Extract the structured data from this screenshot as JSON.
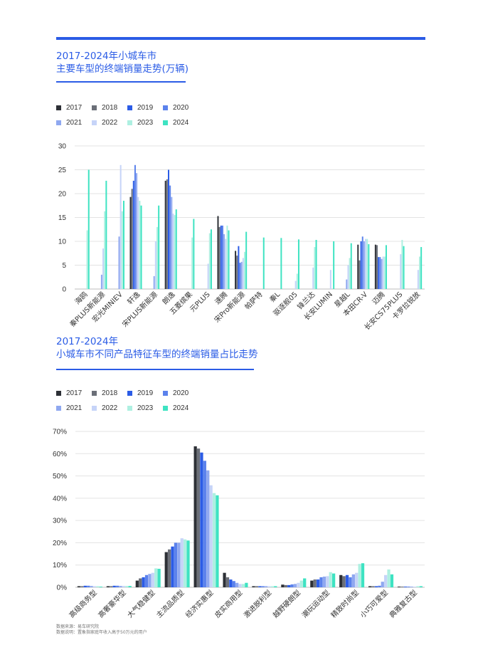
{
  "colors": {
    "accent": "#2b5ce6",
    "series": [
      "#2d3036",
      "#6b6f78",
      "#2b5ce6",
      "#5b82ec",
      "#8fa8f0",
      "#c6d4f8",
      "#aef0e1",
      "#3ee3c2"
    ]
  },
  "chart1": {
    "title_line1": "2017-2024年小城车市",
    "title_line2": "主要车型的终端销量走势(万辆)"
  },
  "chart2": {
    "title_line1": "2017-2024年",
    "title_line2": "小城车市不同产品特征车型的终端销量占比走势"
  },
  "footnote": {
    "source": "数据来源：易车研究院",
    "note": "数据说明：置象指家庭年收入高于50万元的用户"
  },
  "chart_data": [
    {
      "type": "bar",
      "title": "主要车型的终端销量走势(万辆)",
      "categories": [
        "海鸥",
        "秦PLUS新能源",
        "宏光MINIEV",
        "轩逸",
        "宋PLUS新能源",
        "朗逸",
        "五菱缤果",
        "元PLUS",
        "速腾",
        "宋Pro新能源",
        "帕萨特",
        "秦L",
        "驱逐舰05",
        "锋兰达",
        "长安LUMIN",
        "星越L",
        "本田CR-V",
        "迈腾",
        "长安CS75PLUS",
        "卡罗拉锐放"
      ],
      "series": [
        {
          "name": "2017",
          "values": [
            0,
            0,
            0,
            19.3,
            0,
            22.7,
            0,
            0,
            15.3,
            8.0,
            0,
            0,
            0,
            0,
            0,
            0,
            9.3,
            9.3,
            0,
            0
          ]
        },
        {
          "name": "2018",
          "values": [
            0,
            0,
            0,
            21.0,
            0,
            23.0,
            0,
            0,
            13.0,
            7.0,
            0,
            0,
            0,
            0,
            0,
            0,
            6.0,
            9.2,
            0,
            0
          ]
        },
        {
          "name": "2019",
          "values": [
            0,
            0,
            0,
            22.7,
            0,
            25.0,
            0,
            0,
            13.3,
            9.0,
            0,
            0,
            0,
            0,
            0,
            0,
            10.0,
            6.7,
            0,
            0
          ]
        },
        {
          "name": "2020",
          "values": [
            0,
            0,
            0,
            26.0,
            0,
            21.7,
            0,
            0,
            13.3,
            5.5,
            0,
            0,
            0,
            0,
            0,
            0,
            11.0,
            6.7,
            0,
            0
          ]
        },
        {
          "name": "2021",
          "values": [
            0,
            3.0,
            11.0,
            24.3,
            2.7,
            19.3,
            0,
            0,
            11.5,
            5.7,
            0,
            0,
            0,
            0,
            0,
            2.0,
            10.0,
            6.3,
            0,
            0
          ]
        },
        {
          "name": "2022",
          "values": [
            0,
            8.5,
            26.0,
            19.3,
            10.0,
            15.8,
            0,
            5.3,
            10.5,
            6.5,
            0,
            0,
            1.7,
            4.5,
            4.0,
            5.0,
            10.5,
            6.8,
            7.3,
            4.0
          ]
        },
        {
          "name": "2023",
          "values": [
            12.3,
            16.3,
            16.3,
            18.5,
            13.0,
            15.5,
            10.8,
            11.7,
            13.3,
            7.8,
            0,
            0,
            3.2,
            8.8,
            0,
            6.5,
            10.5,
            6.8,
            10.3,
            6.8
          ]
        },
        {
          "name": "2024",
          "values": [
            25.0,
            22.7,
            18.5,
            17.5,
            17.5,
            16.7,
            14.7,
            12.5,
            12.3,
            12.0,
            10.8,
            10.7,
            10.4,
            10.3,
            10.0,
            9.6,
            9.4,
            9.2,
            9.0,
            8.8
          ]
        }
      ],
      "ylim": [
        0,
        30
      ],
      "yticks": [
        "0",
        "5",
        "10",
        "15",
        "20",
        "25",
        "30"
      ],
      "legend": "top-left",
      "grid": true
    },
    {
      "type": "bar",
      "title": "小城车市不同产品特征车型的终端销量占比走势",
      "categories": [
        "高级商务型",
        "高奢豪华型",
        "大气稳健型",
        "主流品质型",
        "经济实惠型",
        "皮实商用型",
        "激进脱利型",
        "越野硬朗型",
        "潮玩运动型",
        "精致时尚型",
        "小巧可爱型",
        "典雅复古型"
      ],
      "series": [
        {
          "name": "2017",
          "values": [
            0.5,
            0.5,
            3.0,
            15.8,
            63.3,
            6.5,
            0.5,
            1.2,
            3.0,
            5.5,
            0.5,
            0.3
          ]
        },
        {
          "name": "2018",
          "values": [
            0.5,
            0.5,
            4.0,
            17.0,
            62.3,
            4.5,
            0.5,
            1.0,
            3.5,
            5.0,
            0.5,
            0.3
          ]
        },
        {
          "name": "2019",
          "values": [
            0.7,
            0.7,
            4.5,
            18.3,
            60.5,
            3.5,
            0.5,
            1.0,
            3.5,
            5.5,
            0.5,
            0.3
          ]
        },
        {
          "name": "2020",
          "values": [
            0.7,
            0.7,
            5.5,
            20.0,
            56.8,
            2.8,
            0.5,
            1.3,
            4.5,
            4.5,
            0.7,
            0.3
          ]
        },
        {
          "name": "2021",
          "values": [
            0.6,
            0.6,
            6.0,
            20.0,
            52.5,
            2.0,
            0.5,
            1.5,
            4.8,
            5.8,
            2.5,
            0.3
          ]
        },
        {
          "name": "2022",
          "values": [
            0.5,
            0.6,
            6.5,
            22.0,
            45.8,
            1.5,
            0.5,
            2.0,
            5.0,
            6.5,
            5.5,
            0.3
          ]
        },
        {
          "name": "2023",
          "values": [
            0.5,
            0.6,
            8.5,
            21.5,
            42.3,
            1.5,
            0.5,
            3.0,
            6.8,
            10.5,
            8.0,
            0.5
          ]
        },
        {
          "name": "2024",
          "values": [
            0.3,
            0.6,
            8.3,
            21.0,
            41.3,
            2.0,
            0.5,
            4.0,
            6.2,
            10.8,
            5.8,
            0.5
          ]
        }
      ],
      "ylim": [
        0,
        70
      ],
      "yticks": [
        "0%",
        "10%",
        "20%",
        "30%",
        "40%",
        "50%",
        "60%",
        "70%"
      ],
      "legend": "top-left",
      "grid": true
    }
  ]
}
